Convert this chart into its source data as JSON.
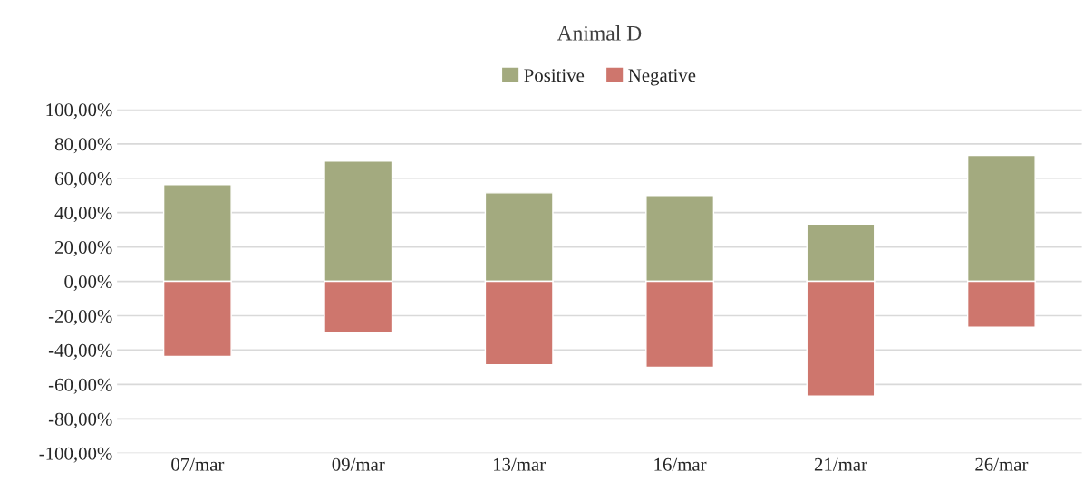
{
  "chart_data": {
    "type": "bar",
    "title": "Animal D",
    "stacked": true,
    "legend": "top",
    "grid": "y",
    "categories": [
      "07/mar",
      "09/mar",
      "13/mar",
      "16/mar",
      "21/mar",
      "26/mar"
    ],
    "series": [
      {
        "name": "Positive",
        "color": "#a3aa7f",
        "values": [
          56.3,
          70,
          51.5,
          50,
          33.3,
          73.3
        ]
      },
      {
        "name": "Negative",
        "color": "#ce766d",
        "values": [
          -43.7,
          -30,
          -48.5,
          -50,
          -66.7,
          -26.7
        ]
      }
    ],
    "ylim": [
      -100,
      100
    ],
    "yticks": [
      {
        "value": -100,
        "label": "-100,00%"
      },
      {
        "value": -80,
        "label": "-80,00%"
      },
      {
        "value": -60,
        "label": "-60,00%"
      },
      {
        "value": -40,
        "label": "-40,00%"
      },
      {
        "value": -20,
        "label": "-20,00%"
      },
      {
        "value": 0,
        "label": "0,00%"
      },
      {
        "value": 20,
        "label": "20,00%"
      },
      {
        "value": 40,
        "label": "40,00%"
      },
      {
        "value": 60,
        "label": "60,00%"
      },
      {
        "value": 80,
        "label": "80,00%"
      },
      {
        "value": 100,
        "label": "100,00%"
      }
    ]
  }
}
